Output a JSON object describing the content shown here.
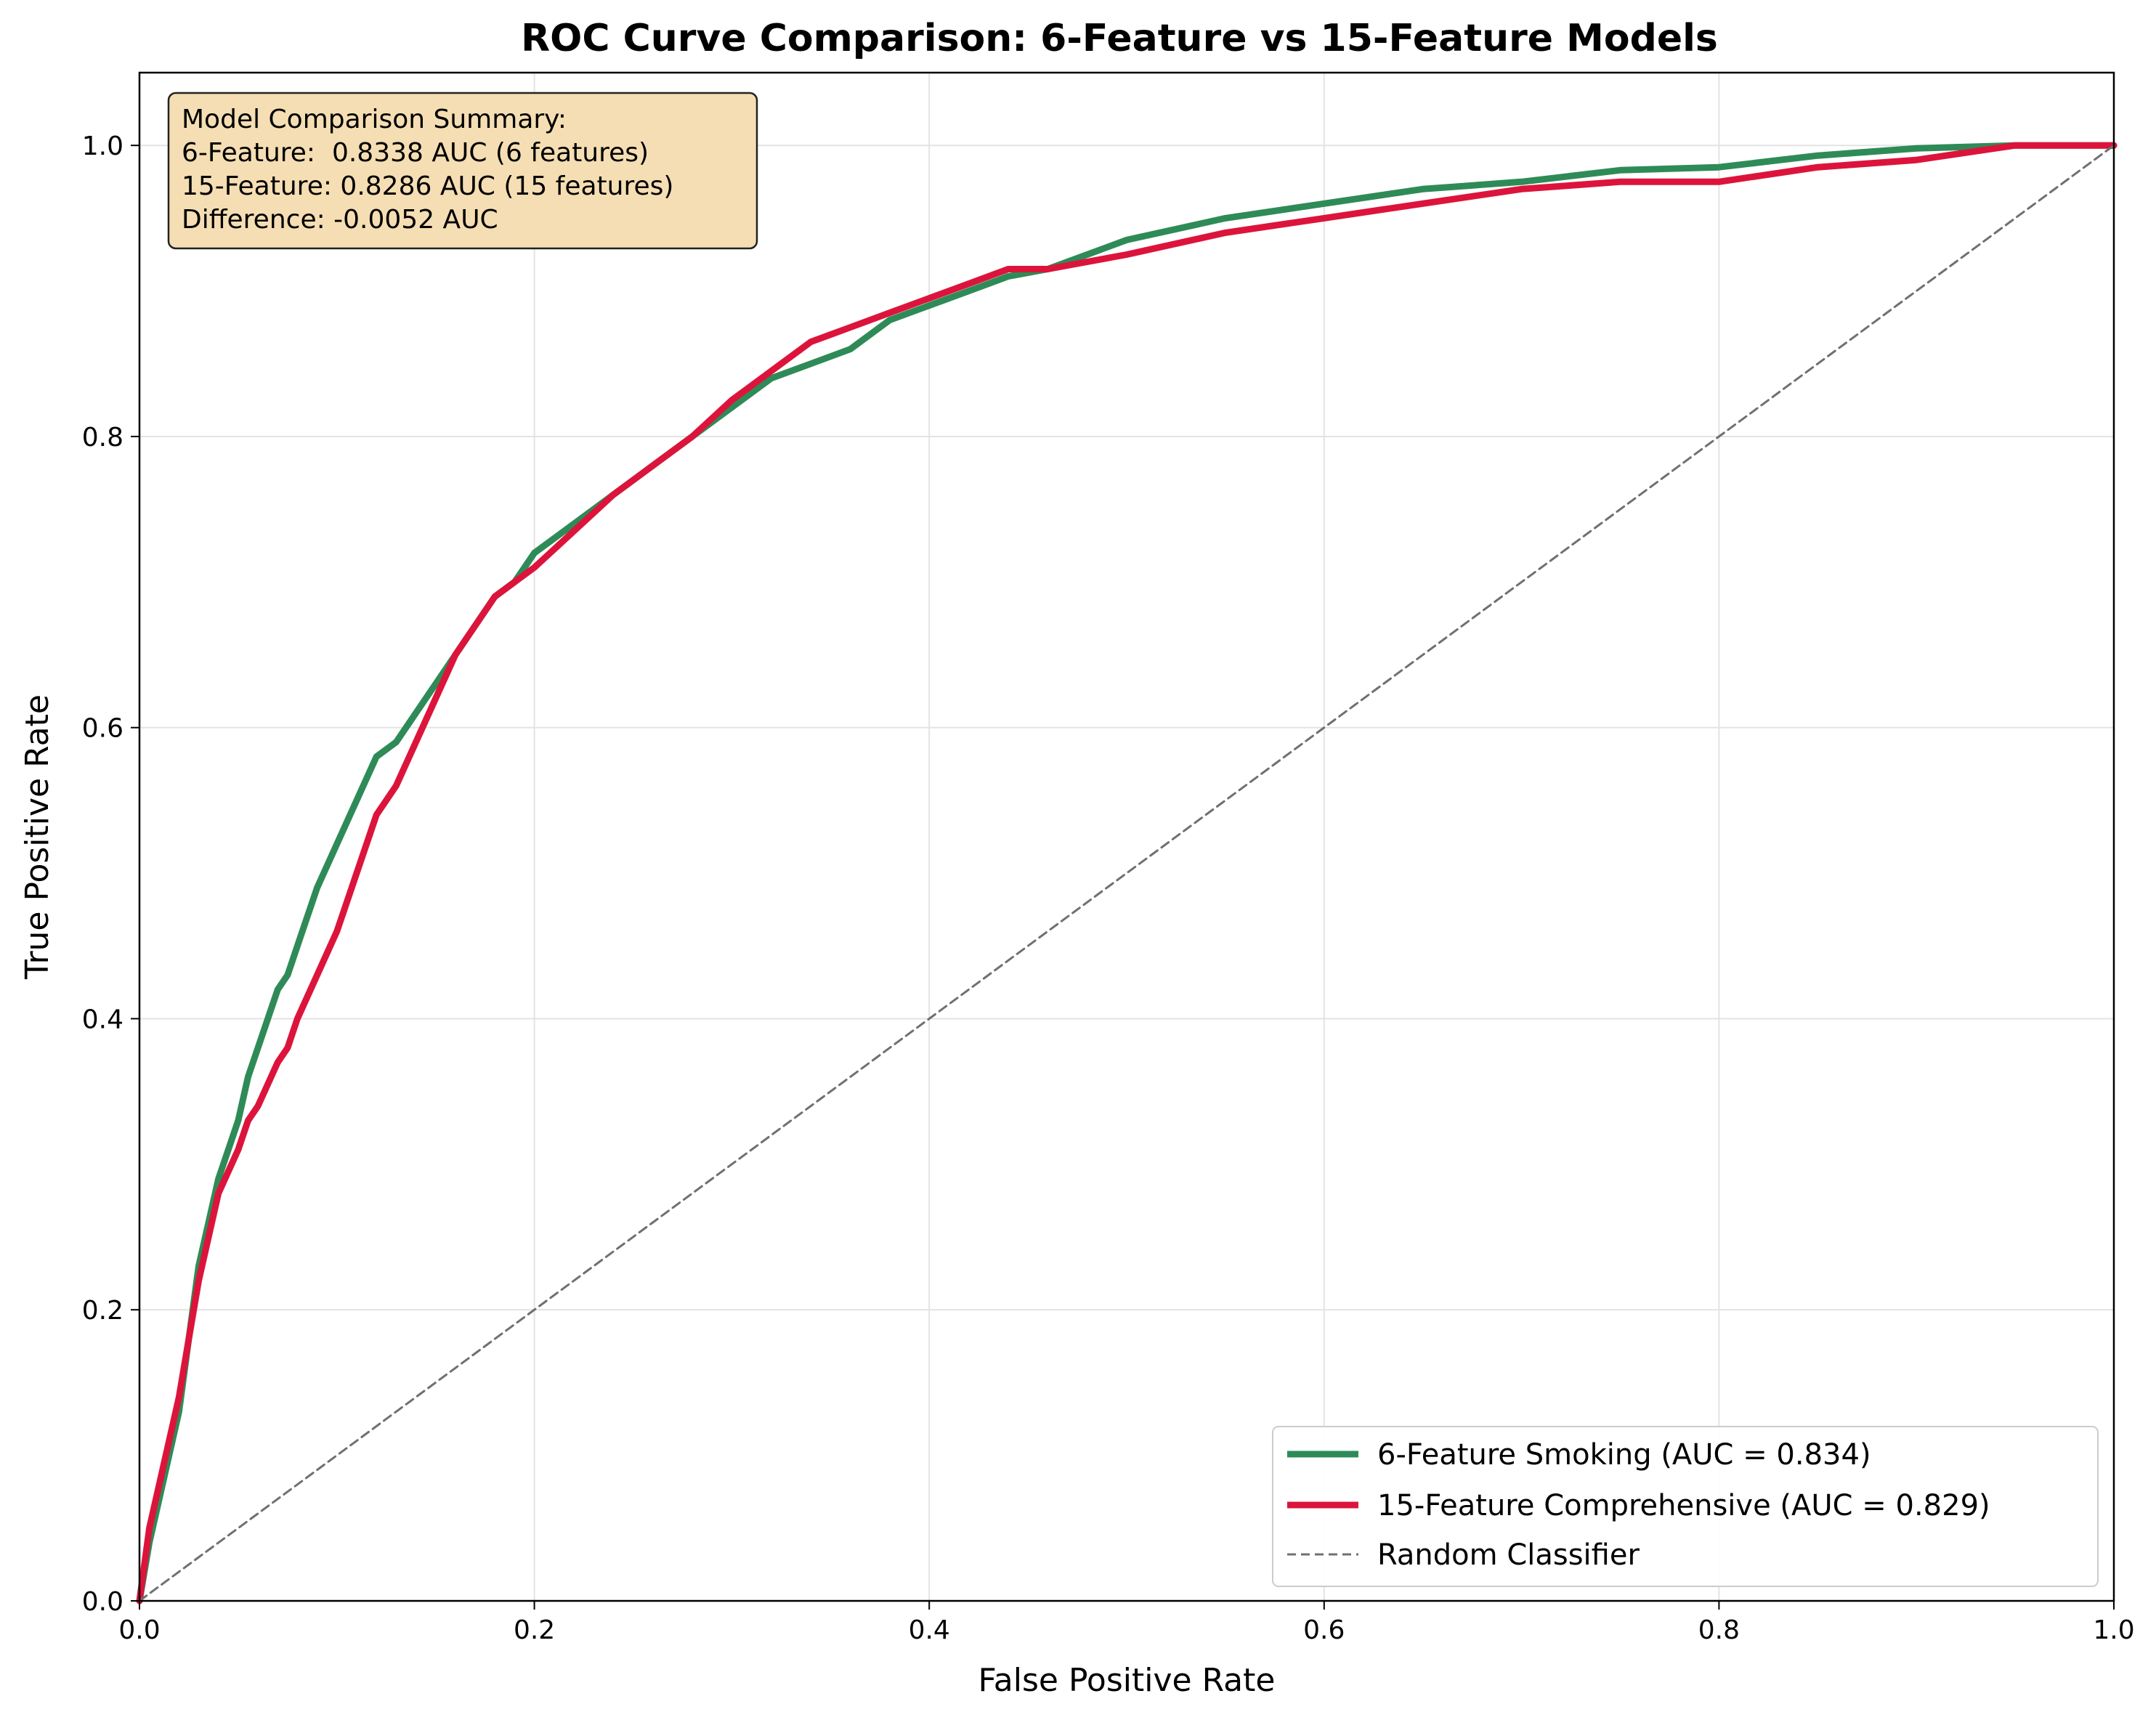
{
  "chart_data": {
    "type": "line",
    "title": "ROC Curve Comparison: 6-Feature vs 15-Feature Models",
    "xlabel": "False Positive Rate",
    "ylabel": "True Positive Rate",
    "xlim": [
      0.0,
      1.0
    ],
    "ylim": [
      0.0,
      1.05
    ],
    "xticks": [
      "0.0",
      "0.2",
      "0.4",
      "0.6",
      "0.8",
      "1.0"
    ],
    "yticks": [
      "0.0",
      "0.2",
      "0.4",
      "0.6",
      "0.8",
      "1.0"
    ],
    "grid": true,
    "legend_position": "lower-right",
    "summary_box": {
      "position": "top-left",
      "lines": [
        "Model Comparison Summary:",
        "6-Feature:  0.8338 AUC (6 features)",
        "15-Feature: 0.8286 AUC (15 features)",
        "Difference: -0.0052 AUC"
      ]
    },
    "series": [
      {
        "name": "6-Feature Smoking (AUC = 0.834)",
        "color": "#2e8b57",
        "style": "solid",
        "x": [
          0,
          0.005,
          0.01,
          0.015,
          0.02,
          0.025,
          0.03,
          0.035,
          0.04,
          0.05,
          0.055,
          0.06,
          0.07,
          0.075,
          0.08,
          0.09,
          0.1,
          0.11,
          0.12,
          0.13,
          0.14,
          0.15,
          0.16,
          0.17,
          0.18,
          0.19,
          0.2,
          0.22,
          0.24,
          0.26,
          0.28,
          0.3,
          0.32,
          0.34,
          0.36,
          0.38,
          0.4,
          0.42,
          0.44,
          0.46,
          0.48,
          0.5,
          0.55,
          0.6,
          0.65,
          0.7,
          0.75,
          0.8,
          0.85,
          0.9,
          0.95,
          1.0
        ],
        "y": [
          0,
          0.04,
          0.07,
          0.1,
          0.13,
          0.18,
          0.23,
          0.26,
          0.29,
          0.33,
          0.36,
          0.38,
          0.42,
          0.43,
          0.45,
          0.49,
          0.52,
          0.55,
          0.58,
          0.59,
          0.61,
          0.63,
          0.65,
          0.67,
          0.69,
          0.7,
          0.72,
          0.74,
          0.76,
          0.78,
          0.8,
          0.82,
          0.84,
          0.85,
          0.86,
          0.88,
          0.89,
          0.9,
          0.91,
          0.915,
          0.925,
          0.935,
          0.95,
          0.96,
          0.97,
          0.975,
          0.983,
          0.985,
          0.993,
          0.998,
          1.0,
          1.0
        ]
      },
      {
        "name": "15-Feature Comprehensive (AUC = 0.829)",
        "color": "#dc143c",
        "style": "solid",
        "x": [
          0,
          0.005,
          0.01,
          0.015,
          0.02,
          0.025,
          0.03,
          0.035,
          0.04,
          0.05,
          0.055,
          0.06,
          0.07,
          0.075,
          0.08,
          0.09,
          0.1,
          0.11,
          0.12,
          0.13,
          0.14,
          0.15,
          0.16,
          0.17,
          0.18,
          0.19,
          0.2,
          0.22,
          0.24,
          0.26,
          0.28,
          0.3,
          0.32,
          0.34,
          0.36,
          0.38,
          0.4,
          0.42,
          0.44,
          0.46,
          0.48,
          0.5,
          0.55,
          0.6,
          0.65,
          0.7,
          0.75,
          0.8,
          0.85,
          0.9,
          0.95,
          1.0
        ],
        "y": [
          0,
          0.05,
          0.08,
          0.11,
          0.14,
          0.18,
          0.22,
          0.25,
          0.28,
          0.31,
          0.33,
          0.34,
          0.37,
          0.38,
          0.4,
          0.43,
          0.46,
          0.5,
          0.54,
          0.56,
          0.59,
          0.62,
          0.65,
          0.67,
          0.69,
          0.7,
          0.71,
          0.735,
          0.76,
          0.78,
          0.8,
          0.825,
          0.845,
          0.865,
          0.875,
          0.885,
          0.895,
          0.905,
          0.915,
          0.915,
          0.92,
          0.925,
          0.94,
          0.95,
          0.96,
          0.97,
          0.975,
          0.975,
          0.985,
          0.99,
          1.0,
          1.0
        ]
      },
      {
        "name": "Random Classifier",
        "color": "#707070",
        "style": "dashed",
        "x": [
          0,
          1.0
        ],
        "y": [
          0,
          1.0
        ]
      }
    ]
  }
}
